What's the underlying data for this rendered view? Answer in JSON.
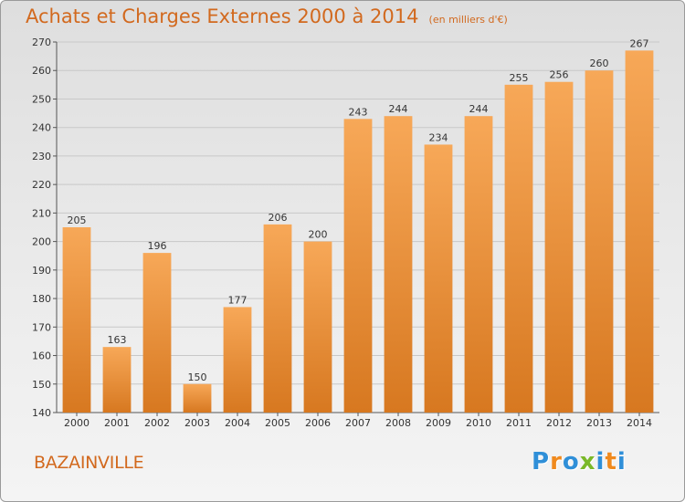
{
  "header": {
    "title": "Achats et Charges Externes 2000 à 2014",
    "subtitle": "(en milliers d'€)"
  },
  "footer": {
    "commune": "BAZAINVILLE",
    "logo_text": "Proxiti"
  },
  "colors": {
    "bar_light": "#f7a858",
    "bar_dark": "#d77820",
    "title": "#d2691e",
    "logo": [
      "#2f8fd8",
      "#f08a1e",
      "#2f8fd8",
      "#7ab828",
      "#2f8fd8",
      "#f08a1e",
      "#2f8fd8"
    ]
  },
  "chart_data": {
    "type": "bar",
    "title": "Achats et Charges Externes 2000 à 2014",
    "subtitle": "(en milliers d'€)",
    "xlabel": "",
    "ylabel": "",
    "categories": [
      "2000",
      "2001",
      "2002",
      "2003",
      "2004",
      "2005",
      "2006",
      "2007",
      "2008",
      "2009",
      "2010",
      "2011",
      "2012",
      "2013",
      "2014"
    ],
    "values": [
      205,
      163,
      196,
      150,
      177,
      206,
      200,
      243,
      244,
      234,
      244,
      255,
      256,
      260,
      267
    ],
    "ylim": [
      140,
      270
    ],
    "yticks": [
      140,
      150,
      160,
      170,
      180,
      190,
      200,
      210,
      220,
      230,
      240,
      250,
      260,
      270
    ],
    "grid": true,
    "data_labels": true
  }
}
